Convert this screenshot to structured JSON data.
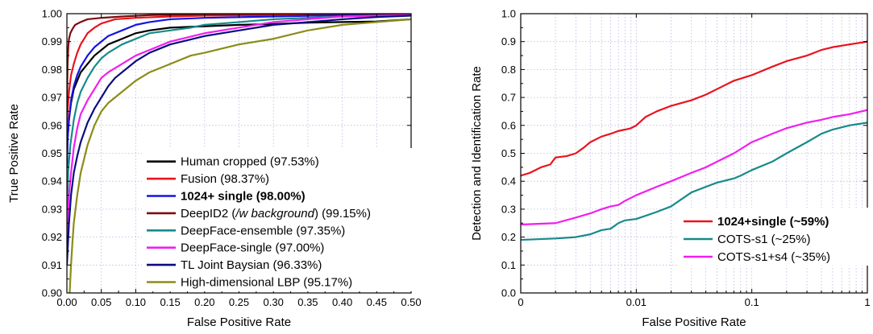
{
  "chart_data": [
    {
      "type": "line",
      "title": "",
      "xlabel": "False Positive Rate",
      "ylabel": "True Positive Rate",
      "xlim": [
        0,
        0.5
      ],
      "ylim": [
        0.9,
        1.0
      ],
      "x_scale": "linear",
      "grid": true,
      "legend_position": "lower-center",
      "x_ticks": [
        0,
        0.05,
        0.1,
        0.15,
        0.2,
        0.25,
        0.3,
        0.35,
        0.4,
        0.45,
        0.5
      ],
      "x_tick_labels": [
        "0.00",
        "0.05",
        "0.10",
        "0.15",
        "0.20",
        "0.25",
        "0.30",
        "0.35",
        "0.40",
        "0.45",
        "0.50"
      ],
      "y_ticks": [
        0.9,
        0.91,
        0.92,
        0.93,
        0.94,
        0.95,
        0.96,
        0.97,
        0.98,
        0.99,
        1.0
      ],
      "y_tick_labels": [
        "0.90",
        "0.91",
        "0.92",
        "0.93",
        "0.94",
        "0.95",
        "0.96",
        "0.97",
        "0.98",
        "0.99",
        "1.00"
      ],
      "legend": [
        {
          "parts": [
            {
              "text": "Human cropped (97.53%)",
              "style": "normal"
            }
          ],
          "color": "#000000"
        },
        {
          "parts": [
            {
              "text": "Fusion (98.37%)",
              "style": "normal"
            }
          ],
          "color": "#e8141e"
        },
        {
          "parts": [
            {
              "text": "1024+ single (98.00%)",
              "style": "bold"
            }
          ],
          "color": "#1414e0"
        },
        {
          "parts": [
            {
              "text": "DeepID2 (",
              "style": "normal"
            },
            {
              "text": "/w background",
              "style": "italic"
            },
            {
              "text": ") (99.15%)",
              "style": "normal"
            }
          ],
          "color": "#7a0e0e"
        },
        {
          "parts": [
            {
              "text": "DeepFace-ensemble (97.35%)",
              "style": "normal"
            }
          ],
          "color": "#178a8a"
        },
        {
          "parts": [
            {
              "text": "DeepFace-single (97.00%)",
              "style": "normal"
            }
          ],
          "color": "#f01ef0"
        },
        {
          "parts": [
            {
              "text": "TL Joint Baysian (96.33%)",
              "style": "normal"
            }
          ],
          "color": "#0c0c82"
        },
        {
          "parts": [
            {
              "text": "High-dimensional LBP (95.17%)",
              "style": "normal"
            }
          ],
          "color": "#8c8c18"
        }
      ],
      "series": [
        {
          "name": "Human cropped (97.53%)",
          "color": "#000000",
          "x": [
            0,
            0.001,
            0.003,
            0.006,
            0.01,
            0.015,
            0.02,
            0.03,
            0.04,
            0.05,
            0.06,
            0.08,
            0.1,
            0.12,
            0.15,
            0.2,
            0.25,
            0.3,
            0.35,
            0.4,
            0.45,
            0.5
          ],
          "y": [
            0.945,
            0.955,
            0.962,
            0.968,
            0.973,
            0.976,
            0.979,
            0.982,
            0.985,
            0.987,
            0.989,
            0.991,
            0.993,
            0.994,
            0.995,
            0.9955,
            0.996,
            0.9963,
            0.9968,
            0.997,
            0.9972,
            0.998
          ]
        },
        {
          "name": "Fusion (98.37%)",
          "color": "#e8141e",
          "x": [
            0,
            0.001,
            0.003,
            0.006,
            0.01,
            0.015,
            0.02,
            0.03,
            0.04,
            0.05,
            0.07,
            0.1,
            0.15,
            0.2,
            0.3,
            0.4,
            0.5
          ],
          "y": [
            0.955,
            0.965,
            0.972,
            0.978,
            0.982,
            0.986,
            0.989,
            0.993,
            0.995,
            0.9965,
            0.998,
            0.9985,
            0.999,
            0.9993,
            0.9995,
            0.9998,
            1.0
          ]
        },
        {
          "name": "1024+ single (98.00%)",
          "color": "#1414e0",
          "x": [
            0,
            0.001,
            0.003,
            0.006,
            0.01,
            0.015,
            0.02,
            0.03,
            0.04,
            0.05,
            0.06,
            0.08,
            0.1,
            0.12,
            0.15,
            0.2,
            0.3,
            0.4,
            0.5
          ],
          "y": [
            0.945,
            0.955,
            0.962,
            0.969,
            0.974,
            0.978,
            0.981,
            0.985,
            0.988,
            0.99,
            0.992,
            0.994,
            0.996,
            0.997,
            0.998,
            0.9985,
            0.999,
            0.9995,
            0.9998
          ]
        },
        {
          "name": "DeepID2 (/w background) (99.15%)",
          "color": "#7a0e0e",
          "x": [
            0,
            0.0005,
            0.001,
            0.002,
            0.003,
            0.005,
            0.008,
            0.012,
            0.02,
            0.03,
            0.05,
            0.08,
            0.12,
            0.2,
            0.3,
            0.5
          ],
          "y": [
            0.965,
            0.975,
            0.982,
            0.988,
            0.991,
            0.993,
            0.9945,
            0.996,
            0.997,
            0.998,
            0.9985,
            0.999,
            0.9995,
            0.9998,
            1.0,
            1.0
          ]
        },
        {
          "name": "DeepFace-ensemble (97.35%)",
          "color": "#178a8a",
          "x": [
            0,
            0.002,
            0.005,
            0.01,
            0.015,
            0.02,
            0.03,
            0.04,
            0.05,
            0.06,
            0.08,
            0.1,
            0.12,
            0.15,
            0.18,
            0.2,
            0.25,
            0.3,
            0.4,
            0.5
          ],
          "y": [
            0.93,
            0.944,
            0.953,
            0.962,
            0.968,
            0.972,
            0.977,
            0.981,
            0.984,
            0.986,
            0.989,
            0.991,
            0.993,
            0.994,
            0.995,
            0.996,
            0.997,
            0.998,
            0.999,
            0.9995
          ]
        },
        {
          "name": "DeepFace-single (97.00%)",
          "color": "#f01ef0",
          "x": [
            0,
            0.003,
            0.006,
            0.01,
            0.015,
            0.02,
            0.03,
            0.04,
            0.05,
            0.06,
            0.08,
            0.1,
            0.12,
            0.15,
            0.2,
            0.25,
            0.3,
            0.35,
            0.4,
            0.5
          ],
          "y": [
            0.92,
            0.935,
            0.943,
            0.952,
            0.959,
            0.964,
            0.969,
            0.973,
            0.977,
            0.979,
            0.982,
            0.985,
            0.987,
            0.99,
            0.993,
            0.995,
            0.997,
            0.998,
            0.999,
            0.9995
          ]
        },
        {
          "name": "TL Joint Baysian (96.33%)",
          "color": "#0c0c82",
          "x": [
            0,
            0.003,
            0.006,
            0.01,
            0.015,
            0.02,
            0.03,
            0.04,
            0.05,
            0.06,
            0.07,
            0.08,
            0.1,
            0.12,
            0.15,
            0.2,
            0.25,
            0.3,
            0.35,
            0.4,
            0.45,
            0.5
          ],
          "y": [
            0.91,
            0.925,
            0.935,
            0.943,
            0.949,
            0.954,
            0.961,
            0.966,
            0.97,
            0.974,
            0.977,
            0.979,
            0.983,
            0.986,
            0.989,
            0.992,
            0.994,
            0.996,
            0.997,
            0.998,
            0.9988,
            0.9993
          ]
        },
        {
          "name": "High-dimensional LBP (95.17%)",
          "color": "#8c8c18",
          "x": [
            0.004,
            0.006,
            0.008,
            0.01,
            0.015,
            0.02,
            0.025,
            0.03,
            0.04,
            0.05,
            0.06,
            0.08,
            0.1,
            0.12,
            0.15,
            0.18,
            0.2,
            0.25,
            0.3,
            0.35,
            0.4,
            0.45,
            0.5
          ],
          "y": [
            0.9,
            0.91,
            0.918,
            0.925,
            0.935,
            0.943,
            0.948,
            0.953,
            0.96,
            0.965,
            0.968,
            0.972,
            0.976,
            0.979,
            0.982,
            0.985,
            0.986,
            0.989,
            0.991,
            0.994,
            0.996,
            0.997,
            0.998
          ]
        }
      ]
    },
    {
      "type": "line",
      "title": "",
      "xlabel": "False Positive Rate",
      "ylabel": "Detection and Identification Rate",
      "xlim": [
        0.001,
        1
      ],
      "ylim": [
        0,
        1.0
      ],
      "x_scale": "log",
      "grid": true,
      "legend_position": "lower-right",
      "x_ticks": [
        0.001,
        0.01,
        0.1,
        1
      ],
      "x_tick_labels": [
        "0",
        "0.01",
        "0.1",
        "1"
      ],
      "y_ticks": [
        0,
        0.1,
        0.2,
        0.3,
        0.4,
        0.5,
        0.6,
        0.7,
        0.8,
        0.9,
        1.0
      ],
      "y_tick_labels": [
        "0.0",
        "0.1",
        "0.2",
        "0.3",
        "0.4",
        "0.5",
        "0.6",
        "0.7",
        "0.8",
        "0.9",
        "1.0"
      ],
      "legend": [
        {
          "parts": [
            {
              "text": "1024+single (~59%)",
              "style": "bold"
            }
          ],
          "color": "#e8141e"
        },
        {
          "parts": [
            {
              "text": "COTS-s1 (~25%)",
              "style": "normal"
            }
          ],
          "color": "#178a8a"
        },
        {
          "parts": [
            {
              "text": "COTS-s1+s4 (~35%)",
              "style": "normal"
            }
          ],
          "color": "#f01ef0"
        }
      ],
      "series": [
        {
          "name": "1024+single (~59%)",
          "color": "#e8141e",
          "x": [
            0.001,
            0.0012,
            0.0015,
            0.0018,
            0.002,
            0.0025,
            0.003,
            0.0035,
            0.004,
            0.005,
            0.006,
            0.007,
            0.008,
            0.009,
            0.01,
            0.012,
            0.015,
            0.02,
            0.03,
            0.04,
            0.05,
            0.07,
            0.1,
            0.15,
            0.2,
            0.3,
            0.4,
            0.5,
            0.7,
            1.0
          ],
          "y": [
            0.42,
            0.43,
            0.45,
            0.46,
            0.485,
            0.49,
            0.5,
            0.52,
            0.54,
            0.56,
            0.57,
            0.58,
            0.585,
            0.59,
            0.6,
            0.63,
            0.65,
            0.67,
            0.69,
            0.71,
            0.73,
            0.76,
            0.78,
            0.81,
            0.83,
            0.85,
            0.87,
            0.88,
            0.89,
            0.9
          ]
        },
        {
          "name": "COTS-s1 (~25%)",
          "color": "#178a8a",
          "x": [
            0.001,
            0.002,
            0.003,
            0.004,
            0.005,
            0.006,
            0.007,
            0.008,
            0.01,
            0.015,
            0.02,
            0.03,
            0.04,
            0.05,
            0.07,
            0.08,
            0.1,
            0.15,
            0.2,
            0.3,
            0.4,
            0.5,
            0.7,
            1.0
          ],
          "y": [
            0.19,
            0.195,
            0.2,
            0.21,
            0.225,
            0.23,
            0.25,
            0.26,
            0.265,
            0.29,
            0.31,
            0.36,
            0.38,
            0.395,
            0.41,
            0.42,
            0.44,
            0.47,
            0.5,
            0.54,
            0.57,
            0.585,
            0.6,
            0.61
          ]
        },
        {
          "name": "COTS-s1+s4 (~35%)",
          "color": "#f01ef0",
          "x": [
            0.001,
            0.002,
            0.003,
            0.004,
            0.005,
            0.006,
            0.007,
            0.008,
            0.01,
            0.015,
            0.02,
            0.03,
            0.04,
            0.05,
            0.07,
            0.1,
            0.15,
            0.2,
            0.3,
            0.4,
            0.5,
            0.7,
            1.0
          ],
          "y": [
            0.245,
            0.25,
            0.27,
            0.285,
            0.3,
            0.31,
            0.315,
            0.33,
            0.35,
            0.38,
            0.4,
            0.43,
            0.45,
            0.47,
            0.5,
            0.54,
            0.57,
            0.59,
            0.61,
            0.62,
            0.63,
            0.64,
            0.655
          ]
        }
      ]
    }
  ]
}
